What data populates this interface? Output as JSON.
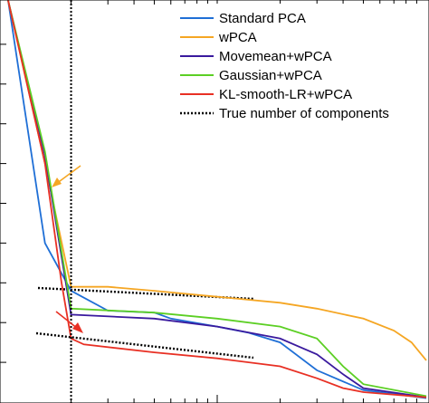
{
  "chart_data": {
    "type": "line",
    "title": "",
    "xlabel": "",
    "ylabel": "",
    "x_scale": "log",
    "xlim": [
      1,
      100
    ],
    "ylim": [
      0,
      10
    ],
    "grid": false,
    "legend_position": "top-right",
    "true_components_x": 2,
    "series": [
      {
        "name": "Standard PCA",
        "color": "#1f6fd6",
        "points": [
          [
            1,
            10.1
          ],
          [
            1.5,
            4.0
          ],
          [
            2,
            2.8
          ],
          [
            3,
            2.3
          ],
          [
            5,
            2.25
          ],
          [
            6,
            2.1
          ],
          [
            10,
            1.9
          ],
          [
            14,
            1.75
          ],
          [
            20,
            1.5
          ],
          [
            30,
            0.8
          ],
          [
            50,
            0.3
          ],
          [
            100,
            0.1
          ]
        ]
      },
      {
        "name": "wPCA",
        "color": "#f5a623",
        "points": [
          [
            1,
            10.1
          ],
          [
            1.5,
            6.0
          ],
          [
            2,
            2.9
          ],
          [
            3,
            2.9
          ],
          [
            5,
            2.8
          ],
          [
            10,
            2.65
          ],
          [
            20,
            2.5
          ],
          [
            30,
            2.35
          ],
          [
            50,
            2.1
          ],
          [
            70,
            1.8
          ],
          [
            85,
            1.5
          ],
          [
            100,
            1.05
          ]
        ]
      },
      {
        "name": "Movemean+wPCA",
        "color": "#3a1a9e",
        "points": [
          [
            1,
            10.1
          ],
          [
            1.5,
            6.2
          ],
          [
            2,
            2.2
          ],
          [
            5,
            2.1
          ],
          [
            10,
            1.9
          ],
          [
            20,
            1.6
          ],
          [
            30,
            1.2
          ],
          [
            40,
            0.7
          ],
          [
            50,
            0.35
          ],
          [
            100,
            0.12
          ]
        ]
      },
      {
        "name": "Gaussian+wPCA",
        "color": "#5ccf24",
        "points": [
          [
            1,
            10.1
          ],
          [
            1.5,
            6.3
          ],
          [
            2,
            2.35
          ],
          [
            5,
            2.25
          ],
          [
            10,
            2.1
          ],
          [
            20,
            1.9
          ],
          [
            30,
            1.6
          ],
          [
            40,
            0.9
          ],
          [
            50,
            0.45
          ],
          [
            100,
            0.15
          ]
        ]
      },
      {
        "name": "KL-smooth-LR+wPCA",
        "color": "#e83024",
        "points": [
          [
            1,
            10.1
          ],
          [
            1.5,
            6.0
          ],
          [
            1.8,
            3.0
          ],
          [
            2,
            1.6
          ],
          [
            2.3,
            1.45
          ],
          [
            5,
            1.25
          ],
          [
            10,
            1.1
          ],
          [
            20,
            0.9
          ],
          [
            30,
            0.6
          ],
          [
            40,
            0.35
          ],
          [
            50,
            0.25
          ],
          [
            100,
            0.12
          ]
        ]
      },
      {
        "name": "True number of components",
        "color": "#000000"
      }
    ]
  }
}
